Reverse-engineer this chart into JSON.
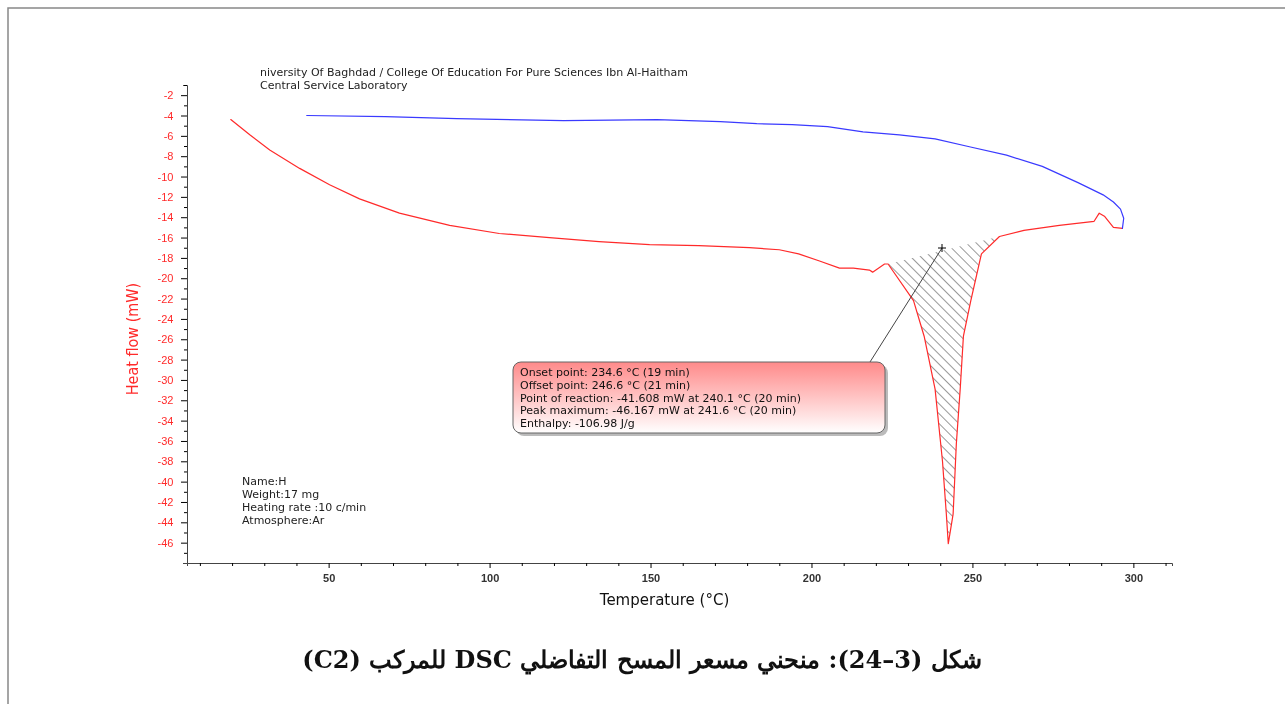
{
  "chart_data": {
    "type": "line",
    "title": "شكل (3–24): منحني مسعر المسح التفاضلي DSC للمركب (C2)",
    "xlabel": "Temperature (°C)",
    "ylabel": "Heat flow (mW)",
    "xlim": [
      6,
      312
    ],
    "ylim": [
      -48,
      -1
    ],
    "xticks": [
      {
        "value": 10,
        "label": null
      },
      {
        "value": 20,
        "label": null
      },
      {
        "value": 30,
        "label": null
      },
      {
        "value": 40,
        "label": null
      },
      50,
      {
        "value": 60,
        "label": null
      },
      {
        "value": 70,
        "label": null
      },
      {
        "value": 80,
        "label": null
      },
      {
        "value": 90,
        "label": null
      },
      100,
      {
        "value": 110,
        "label": null
      },
      {
        "value": 120,
        "label": null
      },
      {
        "value": 130,
        "label": null
      },
      {
        "value": 140,
        "label": null
      },
      150,
      {
        "value": 160,
        "label": null
      },
      {
        "value": 170,
        "label": null
      },
      {
        "value": 180,
        "label": null
      },
      {
        "value": 190,
        "label": null
      },
      200,
      {
        "value": 210,
        "label": null
      },
      {
        "value": 220,
        "label": null
      },
      {
        "value": 230,
        "label": null
      },
      {
        "value": 240,
        "label": null
      },
      250,
      {
        "value": 260,
        "label": null
      },
      {
        "value": 270,
        "label": null
      },
      {
        "value": 280,
        "label": null
      },
      {
        "value": 290,
        "label": null
      },
      300,
      {
        "value": 310,
        "label": null
      }
    ],
    "yticks": [
      {
        "value": -47,
        "label": null
      },
      -46,
      {
        "value": -45,
        "label": null
      },
      -44,
      {
        "value": -43,
        "label": null
      },
      -42,
      {
        "value": -41,
        "label": null
      },
      -40,
      {
        "value": -39,
        "label": null
      },
      -38,
      {
        "value": -37,
        "label": null
      },
      -36,
      {
        "value": -35,
        "label": null
      },
      -34,
      {
        "value": -33,
        "label": null
      },
      -32,
      {
        "value": -31,
        "label": null
      },
      -30,
      {
        "value": -29,
        "label": null
      },
      -28,
      {
        "value": -27,
        "label": null
      },
      -26,
      {
        "value": -25,
        "label": null
      },
      -24,
      {
        "value": -23,
        "label": null
      },
      -22,
      {
        "value": -21,
        "label": null
      },
      -20,
      {
        "value": -19,
        "label": null
      },
      -18,
      {
        "value": -17,
        "label": null
      },
      -16,
      {
        "value": -15,
        "label": null
      },
      -14,
      {
        "value": -13,
        "label": null
      },
      -12,
      {
        "value": -11,
        "label": null
      },
      -10,
      {
        "value": -9,
        "label": null
      },
      -8,
      {
        "value": -7,
        "label": null
      },
      -6,
      {
        "value": -5,
        "label": null
      },
      -4,
      {
        "value": -3,
        "label": null
      },
      -2,
      {
        "value": -1,
        "label": null
      }
    ],
    "line_style": "solid",
    "series": [
      {
        "color": "#ff2a2a",
        "x": [
          19.6,
          25.5,
          31.7,
          41,
          50.3,
          59.6,
          72,
          87.6,
          103,
          118.6,
          134,
          149.7,
          165,
          180.7,
          190,
          196,
          202.5,
          208.7,
          213,
          218,
          219,
          222.7,
          223.8,
          231.7,
          235,
          238.4,
          240.7,
          241.9,
          242.5,
          244,
          245,
          246.2,
          247.2,
          249.5,
          252.8,
          258.4,
          266,
          277,
          287.8,
          289.4,
          291,
          293.8,
          296.6
        ],
        "values": [
          -4.4,
          -5.9,
          -7.4,
          -9.2,
          -10.8,
          -12.2,
          -13.6,
          -14.8,
          -15.6,
          -16.0,
          -16.4,
          -16.7,
          -16.8,
          -17.0,
          -17.2,
          -17.6,
          -18.3,
          -19.0,
          -19.0,
          -19.2,
          -19.4,
          -18.6,
          -18.6,
          -22.2,
          -25.7,
          -30.9,
          -38,
          -43.2,
          -46.1,
          -43.2,
          -36.3,
          -30.9,
          -25.7,
          -22.2,
          -17.6,
          -15.9,
          -15.3,
          -14.8,
          -14.4,
          -13.6,
          -13.9,
          -15.0,
          -15.1
        ],
        "lower": [
          null,
          null,
          null,
          null,
          null,
          null,
          null,
          null,
          null,
          null,
          null,
          null,
          null,
          null,
          null,
          null,
          null,
          null,
          null,
          null,
          null,
          null,
          -18.6,
          -22.2,
          -25.7,
          -30.9,
          -38,
          -43.2,
          -46.1,
          -43.2,
          -36.3,
          -30.9,
          -25.7,
          -22.2,
          -17.6,
          -15.9,
          null,
          null,
          null,
          null,
          null,
          null,
          null
        ],
        "upper": [
          null,
          null,
          null,
          null,
          null,
          null,
          null,
          null,
          null,
          null,
          null,
          null,
          null,
          null,
          null,
          null,
          null,
          null,
          null,
          null,
          null,
          null,
          -18.6,
          -17.98,
          -17.73,
          -17.46,
          -17.28,
          -17.19,
          -17.14,
          -17.02,
          -16.94,
          -16.85,
          -16.77,
          -16.59,
          -16.34,
          -15.9,
          null,
          null,
          null,
          null,
          null,
          null,
          null
        ]
      },
      {
        "color": "#3a3aff",
        "x": [
          43.2,
          67.6,
          89.8,
          123,
          152,
          171.7,
          183,
          194,
          205,
          216,
          227.3,
          238.4,
          249.4,
          260.6,
          271.7,
          282.8,
          290.6,
          293.8,
          296,
          297,
          296.6
        ],
        "values": [
          -4.0,
          -4.1,
          -4.3,
          -4.5,
          -4.4,
          -4.6,
          -4.8,
          -4.9,
          -5.1,
          -5.6,
          -5.9,
          -6.3,
          -7.1,
          -7.9,
          -9.0,
          -10.6,
          -11.8,
          -12.5,
          -13.2,
          -14.1,
          -15.1
        ]
      }
    ],
    "annotations": [
      "niversity Of Baghdad / College Of Education For Pure Sciences Ibn Al-Haitham\nCentral Service Laboratory",
      "Name:H\nWeight:17 mg\nHeating rate :10 c/min\nAtmosphere:Ar",
      "Onset point: 234.6 °C (19 min)\nOffset point: 246.6 °C (21 min)\nPoint of reaction: -41.608 mW at 240.1 °C (20 min)\nPeak maximum: -46.167 mW at 241.6 °C (20 min)\nEnthalpy: -106.98 J/g"
    ]
  }
}
